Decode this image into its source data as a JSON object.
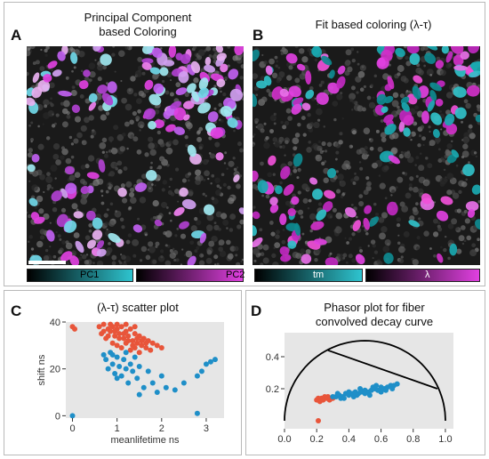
{
  "panels": {
    "a": {
      "letter": "A",
      "title_line1": "Principal Component",
      "title_line2": "based Coloring",
      "colorbar_left": "PC1",
      "colorbar_right": "PC2"
    },
    "b": {
      "letter": "B",
      "title": "Fit based coloring (λ-τ)",
      "colorbar_left": "tm",
      "colorbar_right": "λ"
    },
    "c": {
      "letter": "C",
      "title": "(λ-τ) scatter plot"
    },
    "d": {
      "letter": "D",
      "title_line1": "Phasor plot for fiber",
      "title_line2": "convolved decay curve"
    }
  },
  "colors": {
    "cyan": "#2ec4cf",
    "magenta": "#e040e0",
    "red": "#e8553a",
    "blue": "#1f8fc8",
    "plot_bg": "#e6e6e6"
  },
  "chart_data": [
    {
      "type": "scatter",
      "title": "(λ-τ) scatter plot",
      "xlabel": "meanlifetime ns",
      "ylabel": "shift ns",
      "xlim": [
        -0.15,
        3.4
      ],
      "ylim": [
        -1,
        40
      ],
      "xticks": [
        0,
        1,
        2,
        3
      ],
      "yticks": [
        0,
        20,
        40
      ],
      "grid": false,
      "series": [
        {
          "color": "#e8553a",
          "points": [
            [
              0.0,
              38
            ],
            [
              0.05,
              37
            ],
            [
              0.6,
              38
            ],
            [
              0.7,
              39
            ],
            [
              0.8,
              37
            ],
            [
              0.85,
              36
            ],
            [
              0.9,
              38
            ],
            [
              0.95,
              34
            ],
            [
              1.0,
              37
            ],
            [
              1.05,
              35
            ],
            [
              1.1,
              38
            ],
            [
              1.15,
              33
            ],
            [
              1.2,
              36
            ],
            [
              1.25,
              34
            ],
            [
              1.3,
              37
            ],
            [
              1.35,
              32
            ],
            [
              1.4,
              35
            ],
            [
              1.45,
              31
            ],
            [
              1.5,
              34
            ],
            [
              1.55,
              30
            ],
            [
              1.6,
              33
            ],
            [
              1.65,
              29
            ],
            [
              1.7,
              32
            ],
            [
              1.75,
              28
            ],
            [
              1.8,
              31
            ],
            [
              0.75,
              33
            ],
            [
              0.9,
              31
            ],
            [
              1.0,
              30
            ],
            [
              1.1,
              29
            ],
            [
              1.2,
              31
            ],
            [
              1.3,
              28
            ],
            [
              1.4,
              29
            ],
            [
              1.5,
              27
            ],
            [
              0.65,
              35
            ],
            [
              0.8,
              34
            ],
            [
              0.95,
              36
            ],
            [
              1.05,
              33
            ],
            [
              1.15,
              35
            ],
            [
              1.25,
              32
            ],
            [
              1.35,
              30
            ],
            [
              1.45,
              33
            ],
            [
              1.55,
              32
            ],
            [
              1.65,
              31
            ],
            [
              1.9,
              30
            ],
            [
              2.0,
              29
            ],
            [
              1.0,
              39
            ],
            [
              1.2,
              39
            ],
            [
              1.4,
              38
            ],
            [
              0.7,
              36
            ],
            [
              0.85,
              39
            ]
          ]
        },
        {
          "color": "#1f8fc8",
          "points": [
            [
              0.0,
              0
            ],
            [
              0.7,
              26
            ],
            [
              0.75,
              24
            ],
            [
              0.8,
              20
            ],
            [
              0.85,
              27
            ],
            [
              0.9,
              22
            ],
            [
              0.95,
              18
            ],
            [
              1.0,
              25
            ],
            [
              1.05,
              21
            ],
            [
              1.1,
              17
            ],
            [
              1.15,
              24
            ],
            [
              1.2,
              20
            ],
            [
              1.25,
              14
            ],
            [
              1.3,
              22
            ],
            [
              1.35,
              19
            ],
            [
              1.4,
              25
            ],
            [
              1.45,
              16
            ],
            [
              1.5,
              21
            ],
            [
              1.6,
              12
            ],
            [
              1.7,
              19
            ],
            [
              1.8,
              14
            ],
            [
              1.9,
              10
            ],
            [
              2.0,
              17
            ],
            [
              2.1,
              12
            ],
            [
              2.3,
              11
            ],
            [
              2.5,
              14
            ],
            [
              2.8,
              17
            ],
            [
              2.9,
              19
            ],
            [
              3.0,
              22
            ],
            [
              3.1,
              23
            ],
            [
              3.2,
              24
            ],
            [
              2.8,
              1
            ],
            [
              0.9,
              26
            ],
            [
              1.2,
              27
            ],
            [
              1.0,
              16
            ],
            [
              1.5,
              9
            ]
          ]
        }
      ]
    },
    {
      "type": "scatter",
      "title_line1": "Phasor plot for fiber",
      "title_line2": "convolved decay curve",
      "xlim": [
        0,
        1.05
      ],
      "ylim": [
        -0.05,
        0.55
      ],
      "xticks": [
        0.0,
        0.2,
        0.4,
        0.6,
        0.8,
        1.0
      ],
      "yticks": [
        0.2,
        0.4
      ],
      "grid": false,
      "semicircle": {
        "center": [
          0.5,
          0
        ],
        "radius": 0.5
      },
      "line_segment": [
        [
          0.27,
          0.44
        ],
        [
          0.95,
          0.2
        ]
      ],
      "series": [
        {
          "color": "#e8553a",
          "points": [
            [
              0.2,
              0.13
            ],
            [
              0.21,
              0.14
            ],
            [
              0.22,
              0.12
            ],
            [
              0.23,
              0.14
            ],
            [
              0.24,
              0.13
            ],
            [
              0.25,
              0.15
            ],
            [
              0.26,
              0.14
            ],
            [
              0.27,
              0.15
            ],
            [
              0.28,
              0.13
            ],
            [
              0.3,
              0.14
            ],
            [
              0.21,
              0.0
            ]
          ]
        },
        {
          "color": "#1f8fc8",
          "points": [
            [
              0.3,
              0.15
            ],
            [
              0.32,
              0.15
            ],
            [
              0.34,
              0.16
            ],
            [
              0.36,
              0.15
            ],
            [
              0.38,
              0.17
            ],
            [
              0.4,
              0.16
            ],
            [
              0.42,
              0.17
            ],
            [
              0.44,
              0.18
            ],
            [
              0.46,
              0.17
            ],
            [
              0.48,
              0.18
            ],
            [
              0.5,
              0.19
            ],
            [
              0.52,
              0.18
            ],
            [
              0.54,
              0.19
            ],
            [
              0.56,
              0.2
            ],
            [
              0.58,
              0.19
            ],
            [
              0.6,
              0.21
            ],
            [
              0.62,
              0.2
            ],
            [
              0.64,
              0.21
            ],
            [
              0.66,
              0.22
            ],
            [
              0.68,
              0.22
            ],
            [
              0.7,
              0.23
            ],
            [
              0.35,
              0.14
            ],
            [
              0.4,
              0.18
            ],
            [
              0.45,
              0.16
            ],
            [
              0.5,
              0.17
            ],
            [
              0.55,
              0.21
            ],
            [
              0.6,
              0.18
            ],
            [
              0.33,
              0.17
            ],
            [
              0.37,
              0.14
            ],
            [
              0.43,
              0.15
            ],
            [
              0.47,
              0.2
            ],
            [
              0.53,
              0.16
            ],
            [
              0.57,
              0.22
            ],
            [
              0.63,
              0.19
            ],
            [
              0.67,
              0.2
            ]
          ]
        }
      ]
    }
  ]
}
